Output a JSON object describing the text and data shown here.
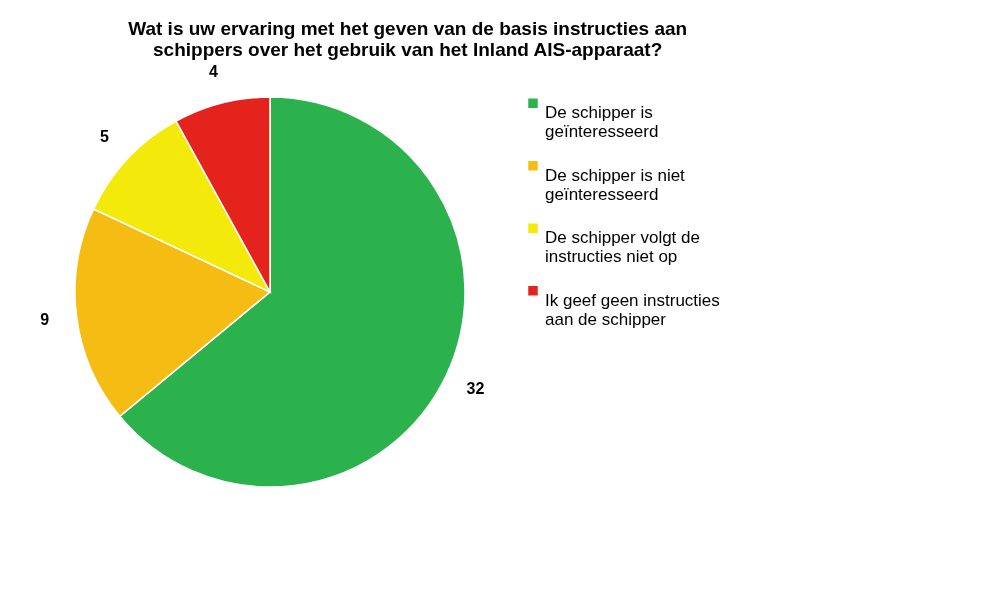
{
  "chart_data": {
    "type": "pie",
    "title": "Wat is uw ervaring met het geven van de basis instructies aan schippers over het gebruik van het Inland AIS-apparaat?",
    "categories": [
      "De schipper is geïnteresseerd",
      "De schipper is niet geïnteresseerd",
      "De schipper volgt de instructies niet op",
      "Ik geef geen instructies aan de schipper"
    ],
    "values": [
      32,
      9,
      5,
      4
    ],
    "colors": [
      "#2bb24c",
      "#f5bd13",
      "#f3ea0c",
      "#e3231c"
    ],
    "data_labels": true,
    "legend": "right"
  }
}
